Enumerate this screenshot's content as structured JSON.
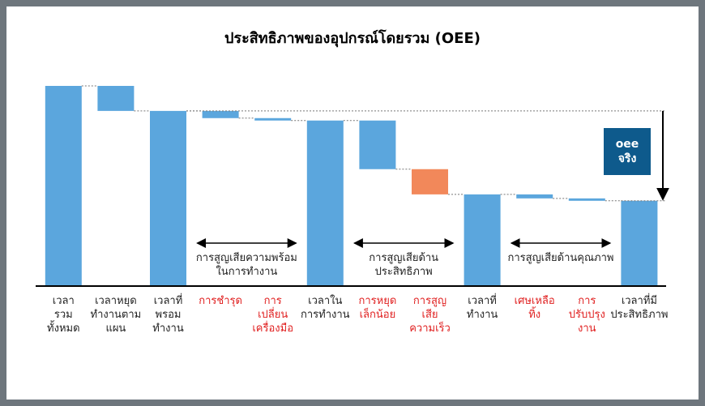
{
  "chart_data": {
    "type": "waterfall",
    "title": "ประสิทธิภาพของอุปกรณ์โดยรวม (OEE)",
    "categories": [
      "เวลา\nรวม\nทั้งหมด",
      "เวลาหยุด\nทำงานตาม\nแผน",
      "เวลาที่\nพรอม\nทำงาน",
      "การชำรุด",
      "การ\nเปลี่ยน\nเครื่องมือ",
      "เวลาใน\nการทำงาน",
      "การหยุด\nเล็กน้อย",
      "การสูญ\nเสีย\nความเร็ว",
      "เวลาที่\nทำงาน",
      "เศษเหลือ\nทิ้ง",
      "การ\nปรับปรุง\nงาน",
      "เวลาที่มี\nประสิทธิภาพ"
    ],
    "measures": [
      "total",
      "loss",
      "total",
      "loss",
      "loss",
      "total",
      "loss",
      "loss",
      "total",
      "loss",
      "loss",
      "total"
    ],
    "values": [
      100,
      12.5,
      87.5,
      3.6,
      1.2,
      82.7,
      24.3,
      12.6,
      45.8,
      2,
      1.2,
      42.6
    ],
    "colors": [
      "#5ba6dd",
      "#5ba6dd",
      "#5ba6dd",
      "#5ba6dd",
      "#5ba6dd",
      "#5ba6dd",
      "#5ba6dd",
      "#f2885a",
      "#5ba6dd",
      "#5ba6dd",
      "#5ba6dd",
      "#5ba6dd"
    ],
    "label_colors": [
      "#222222",
      "#222222",
      "#222222",
      "#e02020",
      "#e02020",
      "#222222",
      "#e02020",
      "#e02020",
      "#222222",
      "#e02020",
      "#e02020",
      "#222222"
    ],
    "groups": [
      {
        "label": "การสูญเสียความพร้อม\nในการทำงาน",
        "span": [
          3,
          4
        ]
      },
      {
        "label": "การสูญเสียด้าน\nประสิทธิภาพ",
        "span": [
          6,
          7
        ]
      },
      {
        "label": "การสูญเสียด้านคุณภาพ",
        "span": [
          9,
          10
        ]
      }
    ],
    "oee_box": {
      "label": "oee\nจริง",
      "color": "#0e5a8c",
      "span": [
        2,
        11
      ]
    }
  }
}
